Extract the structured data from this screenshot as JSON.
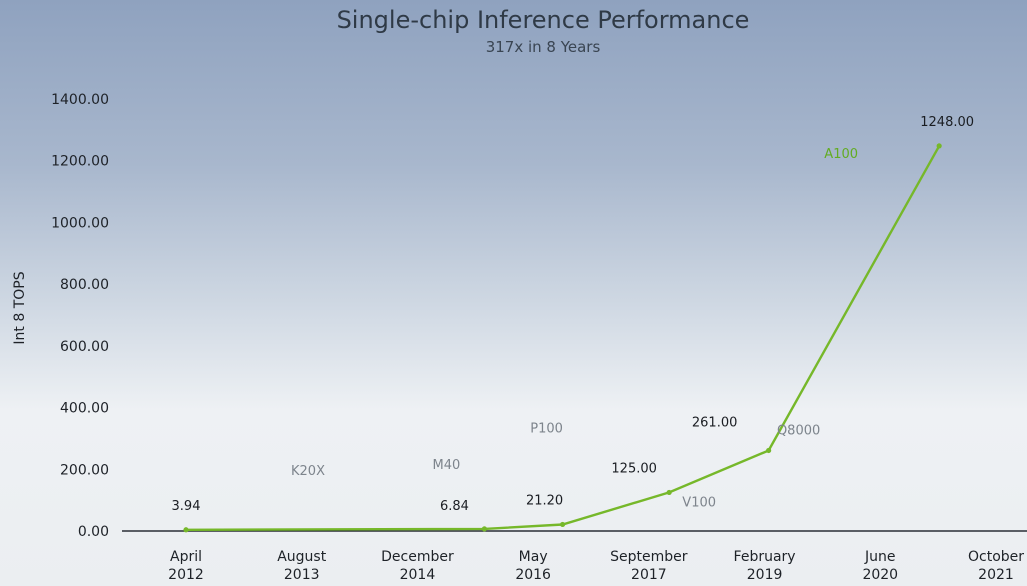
{
  "chart_data": {
    "type": "line",
    "title": "Single-chip Inference Performance",
    "subtitle": "317x in 8 Years",
    "ylabel": "Int 8 TOPS",
    "xlabel": "",
    "ylim": [
      0,
      1400
    ],
    "yticks": [
      "0.00",
      "200.00",
      "400.00",
      "600.00",
      "800.00",
      "1000.00",
      "1200.00",
      "1400.00"
    ],
    "xticks": [
      {
        "month": "April",
        "year": "2012"
      },
      {
        "month": "August",
        "year": "2013"
      },
      {
        "month": "December",
        "year": "2014"
      },
      {
        "month": "May",
        "year": "2016"
      },
      {
        "month": "September",
        "year": "2017"
      },
      {
        "month": "February",
        "year": "2019"
      },
      {
        "month": "June",
        "year": "2020"
      },
      {
        "month": "October",
        "year": "2021"
      }
    ],
    "xlim": [
      "2012-04",
      "2021-10"
    ],
    "grid": false,
    "legend": "none",
    "color": "#76b82a",
    "series": [
      {
        "points": [
          {
            "x": "2012-04",
            "y": 3.94,
            "value_label": "3.94",
            "chip": ""
          },
          {
            "x": "2015-10",
            "y": 6.84,
            "value_label": "6.84",
            "chip": "M40"
          },
          {
            "x": "2016-09",
            "y": 21.2,
            "value_label": "21.20",
            "chip": "P100"
          },
          {
            "x": "2017-12",
            "y": 125,
            "value_label": "125.00",
            "chip": "V100"
          },
          {
            "x": "2019-02",
            "y": 261,
            "value_label": "261.00",
            "chip": "Q8000"
          },
          {
            "x": "2021-02",
            "y": 1248,
            "value_label": "1248.00",
            "chip": "A100"
          }
        ]
      }
    ],
    "extra_labels": [
      "K20X"
    ]
  }
}
